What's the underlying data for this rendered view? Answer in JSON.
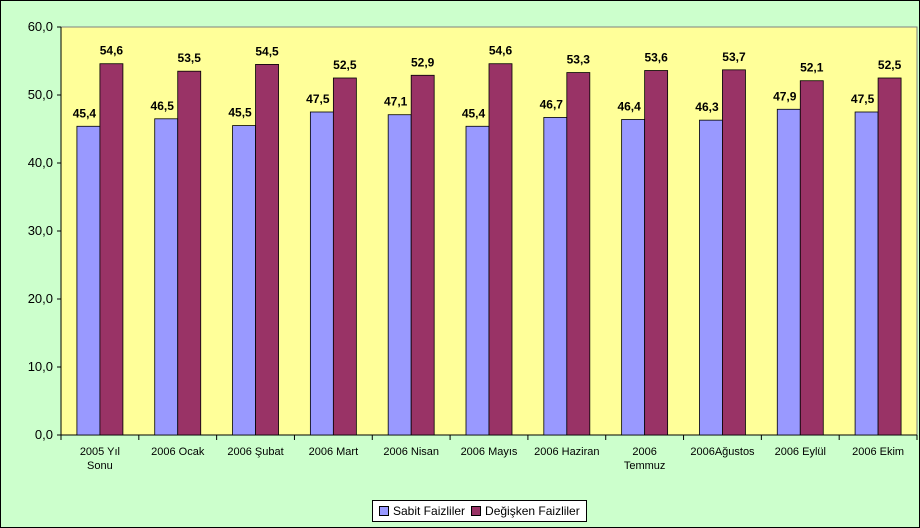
{
  "chart_data": {
    "type": "bar",
    "title": "",
    "xlabel": "",
    "ylabel": "",
    "ylim": [
      0,
      60
    ],
    "yticks": [
      "0,0",
      "10,0",
      "20,0",
      "30,0",
      "40,0",
      "50,0",
      "60,0"
    ],
    "grid": false,
    "legend_position": "bottom",
    "categories": [
      [
        "2005 Yıl",
        "Sonu"
      ],
      [
        "2006 Ocak"
      ],
      [
        "2006 Şubat"
      ],
      [
        "2006 Mart"
      ],
      [
        "2006 Nisan"
      ],
      [
        "2006 Mayıs"
      ],
      [
        "2006 Haziran"
      ],
      [
        "2006",
        "Temmuz"
      ],
      [
        "2006Ağustos"
      ],
      [
        "2006 Eylül"
      ],
      [
        "2006 Ekim"
      ]
    ],
    "series": [
      {
        "name": "Sabit Faizliler",
        "color": "#9999ff",
        "values": [
          45.4,
          46.5,
          45.5,
          47.5,
          47.1,
          45.4,
          46.7,
          46.4,
          46.3,
          47.9,
          47.5
        ],
        "labels": [
          "45,4",
          "46,5",
          "45,5",
          "47,5",
          "47,1",
          "45,4",
          "46,7",
          "46,4",
          "46,3",
          "47,9",
          "47,5"
        ]
      },
      {
        "name": "Değişken Faizliler",
        "color": "#993366",
        "values": [
          54.6,
          53.5,
          54.5,
          52.5,
          52.9,
          54.6,
          53.3,
          53.6,
          53.7,
          52.1,
          52.5
        ],
        "labels": [
          "54,6",
          "53,5",
          "54,5",
          "52,5",
          "52,9",
          "54,6",
          "53,3",
          "53,6",
          "53,7",
          "52,1",
          "52,5"
        ]
      }
    ],
    "plot_background": "#ffff99",
    "chart_background": "#ccffcc"
  }
}
